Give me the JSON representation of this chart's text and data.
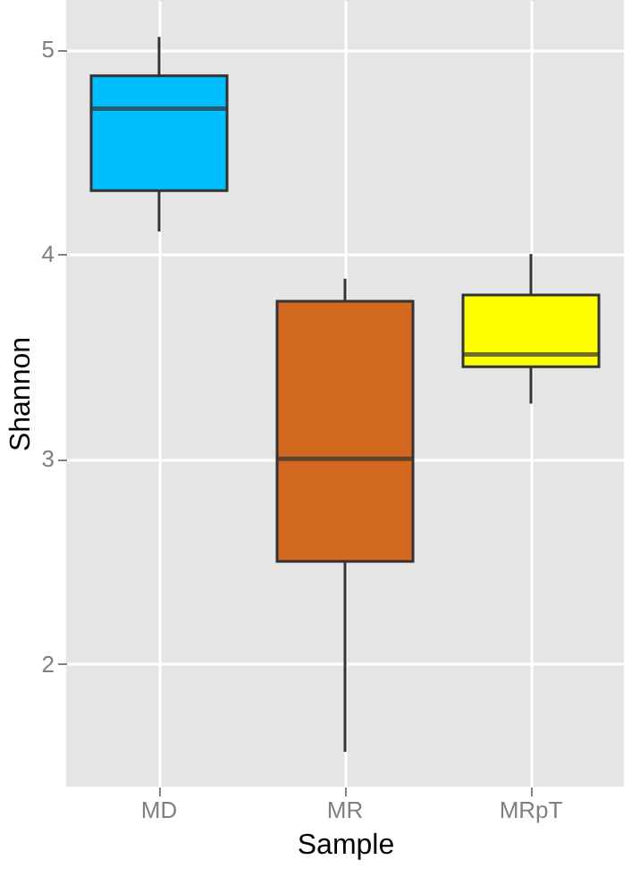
{
  "chart_data": {
    "type": "box",
    "xlabel": "Sample",
    "ylabel": "Shannon",
    "categories": [
      "MD",
      "MR",
      "MRpT"
    ],
    "colors": [
      "#00bfff",
      "#d2691e",
      "#ffff00"
    ],
    "boxes": [
      {
        "low": 4.11,
        "q1": 4.31,
        "median": 4.71,
        "q3": 4.87,
        "high": 5.06
      },
      {
        "low": 1.57,
        "q1": 2.5,
        "median": 3.0,
        "q3": 3.77,
        "high": 3.88
      },
      {
        "low": 3.27,
        "q1": 3.45,
        "median": 3.51,
        "q3": 3.8,
        "high": 4.0
      }
    ],
    "ylim": [
      1.4,
      5.24
    ],
    "yticks": [
      2,
      3,
      4,
      5
    ],
    "grid": true
  }
}
